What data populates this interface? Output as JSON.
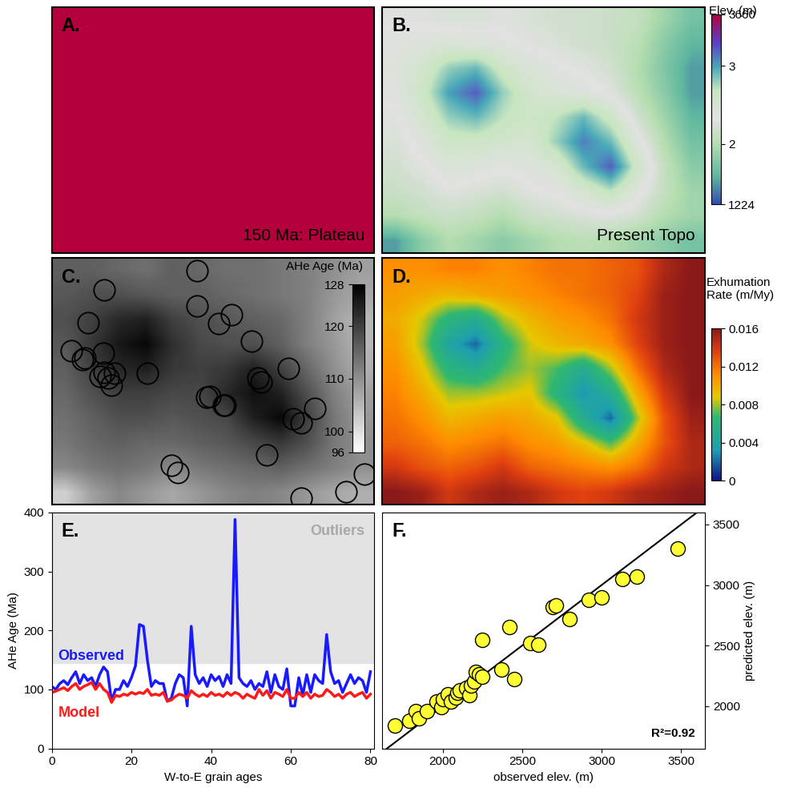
{
  "chart_data": [
    {
      "panel": "A.",
      "type": "heatmap",
      "annotation": "150 Ma: Plateau",
      "xlim": [
        0,
        1
      ],
      "ylim": [
        0,
        1
      ],
      "tick_labels": false,
      "cells": [
        [
          3660
        ]
      ]
    },
    {
      "panel": "B.",
      "type": "heatmap",
      "annotation": "Present Topo",
      "xlim": [
        0,
        1
      ],
      "ylim": [
        0,
        1
      ],
      "tick_labels": false,
      "cells": [
        [
          2300,
          2300,
          2250,
          2250,
          2300,
          2250,
          2200,
          2200,
          2150,
          2100,
          1900,
          1700
        ],
        [
          2350,
          2400,
          2450,
          2400,
          2350,
          2300,
          2250,
          2200,
          2150,
          2050,
          1800,
          1600
        ],
        [
          2400,
          2550,
          2800,
          2900,
          2600,
          2450,
          2350,
          2300,
          2200,
          2000,
          1750,
          1500
        ],
        [
          2350,
          2600,
          3000,
          3200,
          2800,
          2550,
          2450,
          2400,
          2300,
          2050,
          1800,
          1500
        ],
        [
          2300,
          2500,
          2800,
          2900,
          2700,
          2600,
          2700,
          2900,
          2600,
          2200,
          1900,
          1600
        ],
        [
          2250,
          2400,
          2600,
          2600,
          2550,
          2500,
          2800,
          3100,
          2900,
          2400,
          2000,
          1700
        ],
        [
          2200,
          2300,
          2450,
          2400,
          2350,
          2400,
          2500,
          2900,
          3200,
          2600,
          2100,
          1800
        ],
        [
          2150,
          2200,
          2300,
          2250,
          2200,
          2300,
          2350,
          2500,
          2700,
          2400,
          2100,
          1900
        ],
        [
          2000,
          2100,
          2150,
          2100,
          2000,
          2150,
          2200,
          2250,
          2300,
          2200,
          2000,
          1900
        ],
        [
          1500,
          1800,
          2000,
          1900,
          1800,
          1900,
          2000,
          2050,
          2000,
          1900,
          1800,
          1700
        ]
      ],
      "colorbar": {
        "label": "Elev. (m)",
        "range": [
          1224,
          3660
        ],
        "ticks": [
          1224,
          {
            "value": 2000,
            "label": "2"
          },
          {
            "value": 3000,
            "label": "3"
          },
          3660
        ]
      }
    },
    {
      "panel": "C.",
      "type": "heatmap",
      "xlim": [
        0,
        1
      ],
      "ylim": [
        0,
        1
      ],
      "tick_labels": false,
      "cells": [
        [
          116,
          116,
          115,
          114,
          116,
          115,
          114,
          114,
          113,
          112,
          110,
          108
        ],
        [
          117,
          118,
          118,
          117,
          116,
          116,
          115,
          114,
          113,
          112,
          109,
          107
        ],
        [
          118,
          120,
          123,
          124,
          120,
          118,
          117,
          116,
          115,
          112,
          108,
          105
        ],
        [
          117,
          121,
          125,
          127,
          122,
          119,
          118,
          118,
          116,
          112,
          109,
          105
        ],
        [
          116,
          120,
          123,
          124,
          121,
          120,
          121,
          124,
          120,
          115,
          110,
          106
        ],
        [
          115,
          118,
          120,
          120,
          119,
          119,
          123,
          126,
          124,
          118,
          112,
          108
        ],
        [
          114,
          116,
          118,
          118,
          117,
          118,
          119,
          124,
          127,
          120,
          113,
          109
        ],
        [
          113,
          115,
          116,
          115,
          115,
          116,
          117,
          119,
          121,
          118,
          113,
          110
        ],
        [
          111,
          113,
          114,
          113,
          111,
          113,
          114,
          115,
          116,
          114,
          112,
          110
        ],
        [
          102,
          108,
          111,
          109,
          107,
          109,
          111,
          112,
          111,
          109,
          107,
          106
        ]
      ],
      "colorbar": {
        "label": "AHe Age (Ma)",
        "range": [
          96,
          128
        ],
        "ticks": [
          96,
          100,
          110,
          120,
          128
        ]
      },
      "points": {
        "marker": "o",
        "x": [
          0.161,
          0.449,
          0.112,
          0.06,
          0.094,
          0.102,
          0.159,
          0.161,
          0.151,
          0.174,
          0.194,
          0.184,
          0.295,
          0.449,
          0.516,
          0.558,
          0.62,
          0.64,
          0.648,
          0.734,
          0.479,
          0.489,
          0.531,
          0.538,
          0.749,
          0.772,
          0.814,
          0.37,
          0.39,
          0.665,
          0.772,
          0.911,
          0.97
        ],
        "y": [
          0.87,
          0.948,
          0.737,
          0.623,
          0.588,
          0.594,
          0.614,
          0.536,
          0.519,
          0.513,
          0.532,
          0.484,
          0.532,
          0.805,
          0.734,
          0.769,
          0.662,
          0.513,
          0.497,
          0.552,
          0.435,
          0.438,
          0.403,
          0.403,
          0.347,
          0.331,
          0.39,
          0.159,
          0.13,
          0.201,
          0.026,
          0.052,
          0.123
        ]
      }
    },
    {
      "panel": "D.",
      "type": "heatmap",
      "xlim": [
        0,
        1
      ],
      "ylim": [
        0,
        1
      ],
      "tick_labels": false,
      "cells": [
        [
          0.011,
          0.011,
          0.0115,
          0.0115,
          0.011,
          0.0115,
          0.012,
          0.012,
          0.0125,
          0.013,
          0.015,
          0.016
        ],
        [
          0.0105,
          0.01,
          0.0095,
          0.01,
          0.0105,
          0.011,
          0.0115,
          0.012,
          0.0125,
          0.0135,
          0.0155,
          0.016
        ],
        [
          0.01,
          0.0085,
          0.006,
          0.005,
          0.008,
          0.0095,
          0.0105,
          0.011,
          0.012,
          0.014,
          0.0155,
          0.016
        ],
        [
          0.0105,
          0.008,
          0.004,
          0.002,
          0.006,
          0.0085,
          0.0095,
          0.01,
          0.011,
          0.0135,
          0.0155,
          0.016
        ],
        [
          0.011,
          0.009,
          0.006,
          0.005,
          0.007,
          0.008,
          0.007,
          0.005,
          0.008,
          0.012,
          0.015,
          0.016
        ],
        [
          0.0115,
          0.01,
          0.008,
          0.008,
          0.0085,
          0.009,
          0.006,
          0.003,
          0.005,
          0.01,
          0.014,
          0.016
        ],
        [
          0.012,
          0.011,
          0.0095,
          0.01,
          0.0105,
          0.01,
          0.009,
          0.005,
          0.002,
          0.008,
          0.013,
          0.0155
        ],
        [
          0.0125,
          0.012,
          0.011,
          0.0115,
          0.012,
          0.011,
          0.0105,
          0.009,
          0.007,
          0.01,
          0.013,
          0.015
        ],
        [
          0.014,
          0.013,
          0.0125,
          0.013,
          0.014,
          0.0125,
          0.012,
          0.0115,
          0.011,
          0.012,
          0.014,
          0.015
        ],
        [
          0.016,
          0.0155,
          0.014,
          0.015,
          0.0155,
          0.015,
          0.014,
          0.0135,
          0.014,
          0.015,
          0.0155,
          0.016
        ]
      ],
      "colorbar": {
        "label": "Exhumation\nRate (m/My)",
        "range": [
          0,
          0.016
        ],
        "ticks": [
          0,
          0.004,
          0.008,
          0.012,
          0.016
        ]
      }
    },
    {
      "panel": "E.",
      "type": "line",
      "x_label": "W-to-E grain ages",
      "y_label": "AHe Age (Ma)",
      "xlim": [
        0,
        81
      ],
      "ylim": [
        0,
        400
      ],
      "xticks": [
        0,
        20,
        40,
        60,
        80
      ],
      "yticks": [
        0,
        100,
        200,
        300,
        400
      ],
      "annotation": "Outliers",
      "outlier_range": [
        145,
        400
      ],
      "x": [
        0,
        1,
        2,
        3,
        4,
        5,
        6,
        7,
        8,
        9,
        10,
        11,
        12,
        13,
        14,
        15,
        16,
        17,
        18,
        19,
        20,
        21,
        22,
        23,
        24,
        25,
        26,
        27,
        28,
        29,
        30,
        31,
        32,
        33,
        34,
        35,
        36,
        37,
        38,
        39,
        40,
        41,
        42,
        43,
        44,
        45,
        46,
        47,
        48,
        49,
        50,
        51,
        52,
        53,
        54,
        55,
        56,
        57,
        58,
        59,
        60,
        61,
        62,
        63,
        64,
        65,
        66,
        67,
        68,
        69,
        70,
        71,
        72,
        73,
        74,
        75,
        76,
        77,
        78,
        79,
        80
      ],
      "series": [
        {
          "name": "Observed",
          "color": "#1a1aff",
          "values": [
            105,
            100,
            110,
            115,
            108,
            120,
            130,
            110,
            125,
            115,
            120,
            105,
            125,
            138,
            130,
            80,
            100,
            100,
            115,
            105,
            120,
            140,
            210,
            207,
            150,
            105,
            115,
            110,
            110,
            80,
            85,
            110,
            125,
            120,
            72,
            207,
            125,
            110,
            120,
            105,
            125,
            115,
            122,
            105,
            125,
            110,
            388,
            120,
            110,
            105,
            115,
            100,
            110,
            105,
            130,
            95,
            125,
            105,
            100,
            135,
            72,
            72,
            120,
            90,
            125,
            95,
            125,
            115,
            110,
            193,
            130,
            110,
            115,
            95,
            110,
            125,
            110,
            120,
            115,
            95,
            130
          ]
        },
        {
          "name": "Model",
          "color": "#ff1a1a",
          "values": [
            95,
            97,
            100,
            103,
            98,
            105,
            110,
            100,
            105,
            108,
            112,
            100,
            110,
            100,
            95,
            78,
            90,
            88,
            92,
            90,
            95,
            92,
            95,
            93,
            100,
            90,
            92,
            90,
            95,
            80,
            82,
            88,
            92,
            90,
            85,
            98,
            92,
            88,
            92,
            88,
            95,
            90,
            92,
            88,
            95,
            90,
            95,
            92,
            85,
            92,
            88,
            85,
            100,
            90,
            98,
            85,
            95,
            92,
            88,
            100,
            85,
            85,
            95,
            88,
            95,
            85,
            92,
            88,
            90,
            100,
            95,
            88,
            92,
            85,
            92,
            95,
            88,
            92,
            95,
            85,
            92
          ]
        }
      ]
    },
    {
      "panel": "F.",
      "type": "scatter",
      "x_label": "observed elev. (m)",
      "y_label": "predicted elev. (m)",
      "xlim": [
        1620,
        3650
      ],
      "ylim": [
        1650,
        3600
      ],
      "xticks": [
        2000,
        2500,
        3000,
        3500
      ],
      "yticks": [
        2000,
        2500,
        3000,
        3500
      ],
      "annotation": "R²=0.92",
      "color": "#ffff33",
      "marker": "o",
      "x": [
        1700,
        1790,
        1830,
        1850,
        1900,
        1960,
        1990,
        2000,
        2030,
        2050,
        2080,
        2090,
        2110,
        2150,
        2170,
        2180,
        2200,
        2210,
        2230,
        2250,
        2250,
        2370,
        2420,
        2450,
        2550,
        2600,
        2690,
        2710,
        2800,
        2920,
        3000,
        3130,
        3220,
        3480
      ],
      "y": [
        1840,
        1880,
        1960,
        1900,
        1960,
        2040,
        1990,
        2060,
        2100,
        2040,
        2070,
        2110,
        2130,
        2150,
        2090,
        2170,
        2200,
        2280,
        2260,
        2550,
        2240,
        2300,
        2650,
        2220,
        2520,
        2510,
        2820,
        2830,
        2720,
        2880,
        2900,
        3050,
        3070,
        3300
      ]
    }
  ]
}
